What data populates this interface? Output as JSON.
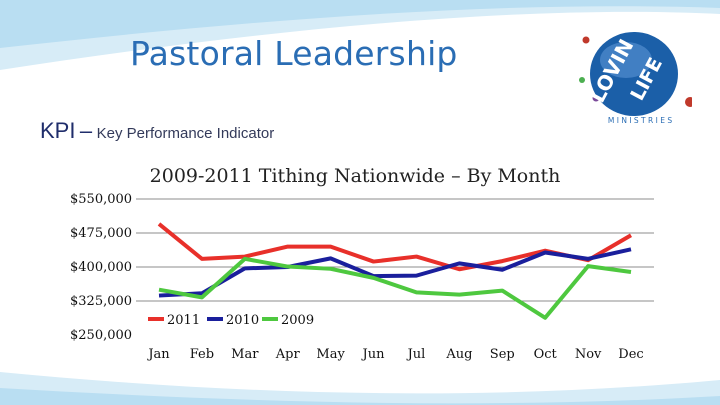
{
  "slide": {
    "title": "Pastoral Leadership",
    "kpi_abbrev": "KPI",
    "kpi_dash": "–",
    "kpi_text": "Key Performance Indicator"
  },
  "logo": {
    "line1": "LOVIN",
    "line2": "LIFE",
    "tagline": "M I N I S T R I E S",
    "colors": {
      "globe": "#1b5fa8",
      "accent_red": "#c0392b",
      "accent_green": "#4caf50",
      "accent_purple": "#7b4a9a"
    }
  },
  "chart_data": {
    "type": "line",
    "title": "2009-2011 Tithing Nationwide – By Month",
    "categories": [
      "Jan",
      "Feb",
      "Mar",
      "Apr",
      "May",
      "Jun",
      "Jul",
      "Aug",
      "Sep",
      "Oct",
      "Nov",
      "Dec"
    ],
    "ylim": [
      250000,
      550000
    ],
    "yticks": [
      550000,
      475000,
      400000,
      325000,
      250000
    ],
    "ytick_labels": [
      "$550,000",
      "$475,000",
      "$400,000",
      "$325,000",
      "$250,000"
    ],
    "grid": true,
    "legend_position": "bottom-left",
    "series": [
      {
        "name": "2011",
        "color": "#e8302a",
        "values": [
          495000,
          418000,
          423000,
          445000,
          445000,
          412000,
          423000,
          395000,
          413000,
          436000,
          415000,
          470000
        ]
      },
      {
        "name": "2010",
        "color": "#1a1f9c",
        "values": [
          337000,
          342000,
          397000,
          400000,
          419000,
          380000,
          381000,
          408000,
          394000,
          432000,
          418000,
          439000
        ]
      },
      {
        "name": "2009",
        "color": "#4ec83f",
        "values": [
          350000,
          333000,
          418000,
          401000,
          396000,
          376000,
          344000,
          339000,
          348000,
          288000,
          402000,
          389000
        ]
      }
    ]
  }
}
